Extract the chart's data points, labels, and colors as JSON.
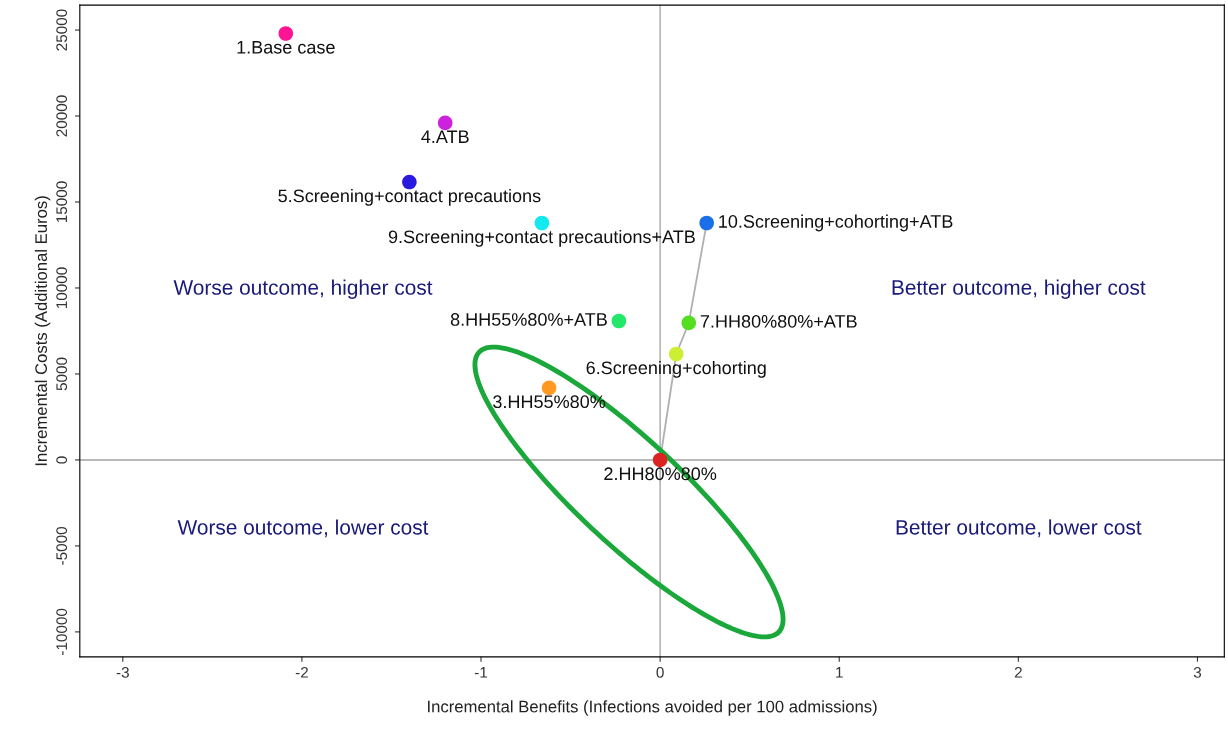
{
  "chart_data": {
    "type": "scatter",
    "xlabel": "Incremental Benefits (Infections avoided per 100 admissions)",
    "ylabel": "Incremental Costs (Additional Euros)",
    "xlim": [
      -3.24,
      3.15
    ],
    "xticks": [
      -3,
      -2,
      -1,
      0,
      1,
      2,
      3
    ],
    "ylim": [
      -11450,
      26450
    ],
    "yticks": [
      -10000,
      -5000,
      0,
      5000,
      10000,
      15000,
      20000,
      25000
    ],
    "grid": false,
    "legend": false,
    "marker": "circle",
    "series": [
      {
        "type": "line",
        "marker": "none",
        "color": "#b0b0b0",
        "x": [
          0,
          0.09,
          0.16,
          0.26
        ],
        "values": [
          0,
          6160,
          7970,
          13780
        ]
      },
      {
        "name": "1.Base case",
        "color": "#ff1493",
        "x": [
          -2.09
        ],
        "values": [
          24800
        ]
      },
      {
        "name": "2.HH80%80%",
        "color": "#dd2222",
        "x": [
          0
        ],
        "values": [
          0
        ]
      },
      {
        "name": "3.HH55%80%",
        "color": "#ff9922",
        "x": [
          -0.62
        ],
        "values": [
          4190
        ]
      },
      {
        "name": "4.ATB",
        "color": "#cc22dd",
        "x": [
          -1.2
        ],
        "values": [
          19600
        ]
      },
      {
        "name": "5.Screening+contact precautions",
        "color": "#2a1ae0",
        "x": [
          -1.4
        ],
        "values": [
          16160
        ]
      },
      {
        "name": "6.Screening+cohorting",
        "color": "#ccee33",
        "x": [
          0.09
        ],
        "values": [
          6160
        ]
      },
      {
        "name": "7.HH80%80%+ATB",
        "color": "#55dd22",
        "x": [
          0.16
        ],
        "values": [
          7970
        ]
      },
      {
        "name": "8.HH55%80%+ATB",
        "color": "#22e86a",
        "x": [
          -0.23
        ],
        "values": [
          8080
        ]
      },
      {
        "name": "9.Screening+contact precautions+ATB",
        "color": "#14e8f0",
        "x": [
          -0.66
        ],
        "values": [
          13780
        ]
      },
      {
        "name": "10.Screening+cohorting+ATB",
        "color": "#1a6ee8",
        "x": [
          0.26
        ],
        "values": [
          13780
        ]
      }
    ],
    "ref_lines": [
      {
        "axis": "x",
        "value": 0,
        "color": "#a8a8a8"
      },
      {
        "axis": "y",
        "value": 0,
        "color": "#a0a0a0"
      }
    ],
    "annotations": [
      "Worse outcome, higher cost",
      "Better outcome, higher cost",
      "Worse outcome, lower cost",
      "Better outcome, lower cost"
    ]
  }
}
